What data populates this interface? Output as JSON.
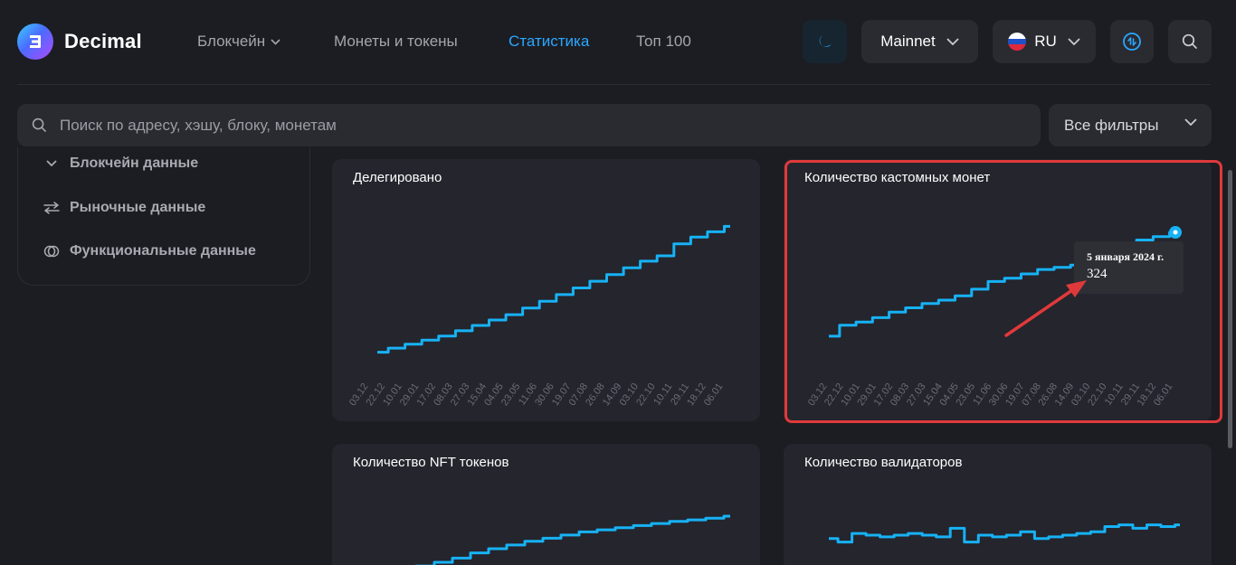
{
  "header": {
    "brand": "Decimal",
    "nav": [
      {
        "label": "Блокчейн",
        "has_dropdown": true
      },
      {
        "label": "Монеты и токены"
      },
      {
        "label": "Статистика",
        "active": true
      },
      {
        "label": "Топ 100"
      }
    ],
    "network": "Mainnet",
    "language": "RU"
  },
  "search": {
    "placeholder": "Поиск по адресу, хэшу, блоку, монетам",
    "filters_label": "Все фильтры"
  },
  "sidebar": {
    "items": [
      {
        "label": "Блокчейн данные",
        "icon": "chevron-icon"
      },
      {
        "label": "Рыночные данные",
        "icon": "exchange-arrows-icon"
      },
      {
        "label": "Функциональные данные",
        "icon": "toggle-circles-icon"
      }
    ]
  },
  "colors": {
    "accent": "#29a8ff",
    "series": "#17b2f5",
    "highlight": "#e0393b",
    "background": "#1c1d22",
    "card": "#24252d"
  },
  "cards": {
    "delegated": {
      "title": "Делегировано"
    },
    "custom_coins": {
      "title": "Количество кастомных монет"
    },
    "nft": {
      "title": "Количество NFT токенов"
    },
    "validators": {
      "title": "Количество валидаторов"
    }
  },
  "tooltip": {
    "date": "5 января 2024 г.",
    "value": "324"
  },
  "chart_data": [
    {
      "type": "line",
      "title": "Делегировано",
      "x": [
        "03.12",
        "22.12",
        "10.01",
        "29.01",
        "17.02",
        "08.03",
        "27.03",
        "15.04",
        "04.05",
        "23.05",
        "11.06",
        "30.06",
        "19.07",
        "07.08",
        "26.08",
        "14.09",
        "03.10",
        "22.10",
        "10.11",
        "29.11",
        "18.12",
        "06.01"
      ],
      "series": [
        {
          "values": [
            0.03,
            0.06,
            0.09,
            0.12,
            0.15,
            0.19,
            0.23,
            0.27,
            0.31,
            0.36,
            0.41,
            0.46,
            0.51,
            0.56,
            0.61,
            0.66,
            0.71,
            0.75,
            0.84,
            0.89,
            0.93,
            0.97
          ]
        }
      ]
    },
    {
      "type": "line",
      "title": "Количество кастомных монет",
      "x": [
        "03.12",
        "22.12",
        "10.01",
        "29.01",
        "17.02",
        "08.03",
        "27.03",
        "15.04",
        "04.05",
        "23.05",
        "11.06",
        "30.06",
        "19.07",
        "07.08",
        "26.08",
        "14.09",
        "03.10",
        "22.10",
        "10.11",
        "29.11",
        "18.12",
        "06.01"
      ],
      "series": [
        {
          "values": [
            0.05,
            0.15,
            0.18,
            0.22,
            0.27,
            0.31,
            0.35,
            0.38,
            0.42,
            0.48,
            0.55,
            0.58,
            0.62,
            0.66,
            0.68,
            0.7,
            0.74,
            0.82,
            0.88,
            0.93,
            0.96,
            1.0
          ]
        }
      ],
      "tooltip_point": {
        "x": "06.01",
        "y": 324
      }
    },
    {
      "type": "line",
      "title": "Количество NFT токенов",
      "series": [
        {
          "values": [
            0.0,
            0.05,
            0.12,
            0.2,
            0.3,
            0.38,
            0.45,
            0.52,
            0.58,
            0.64,
            0.7,
            0.74,
            0.78,
            0.82,
            0.86,
            0.9,
            0.93,
            0.96,
            1.0
          ]
        }
      ]
    },
    {
      "type": "line",
      "title": "Количество валидаторов",
      "series": [
        {
          "values": [
            0.4,
            0.3,
            0.55,
            0.5,
            0.45,
            0.5,
            0.55,
            0.5,
            0.45,
            0.7,
            0.3,
            0.5,
            0.45,
            0.5,
            0.6,
            0.4,
            0.45,
            0.5,
            0.55,
            0.6,
            0.75,
            0.8,
            0.7,
            0.8,
            0.75,
            0.8
          ]
        }
      ]
    }
  ]
}
